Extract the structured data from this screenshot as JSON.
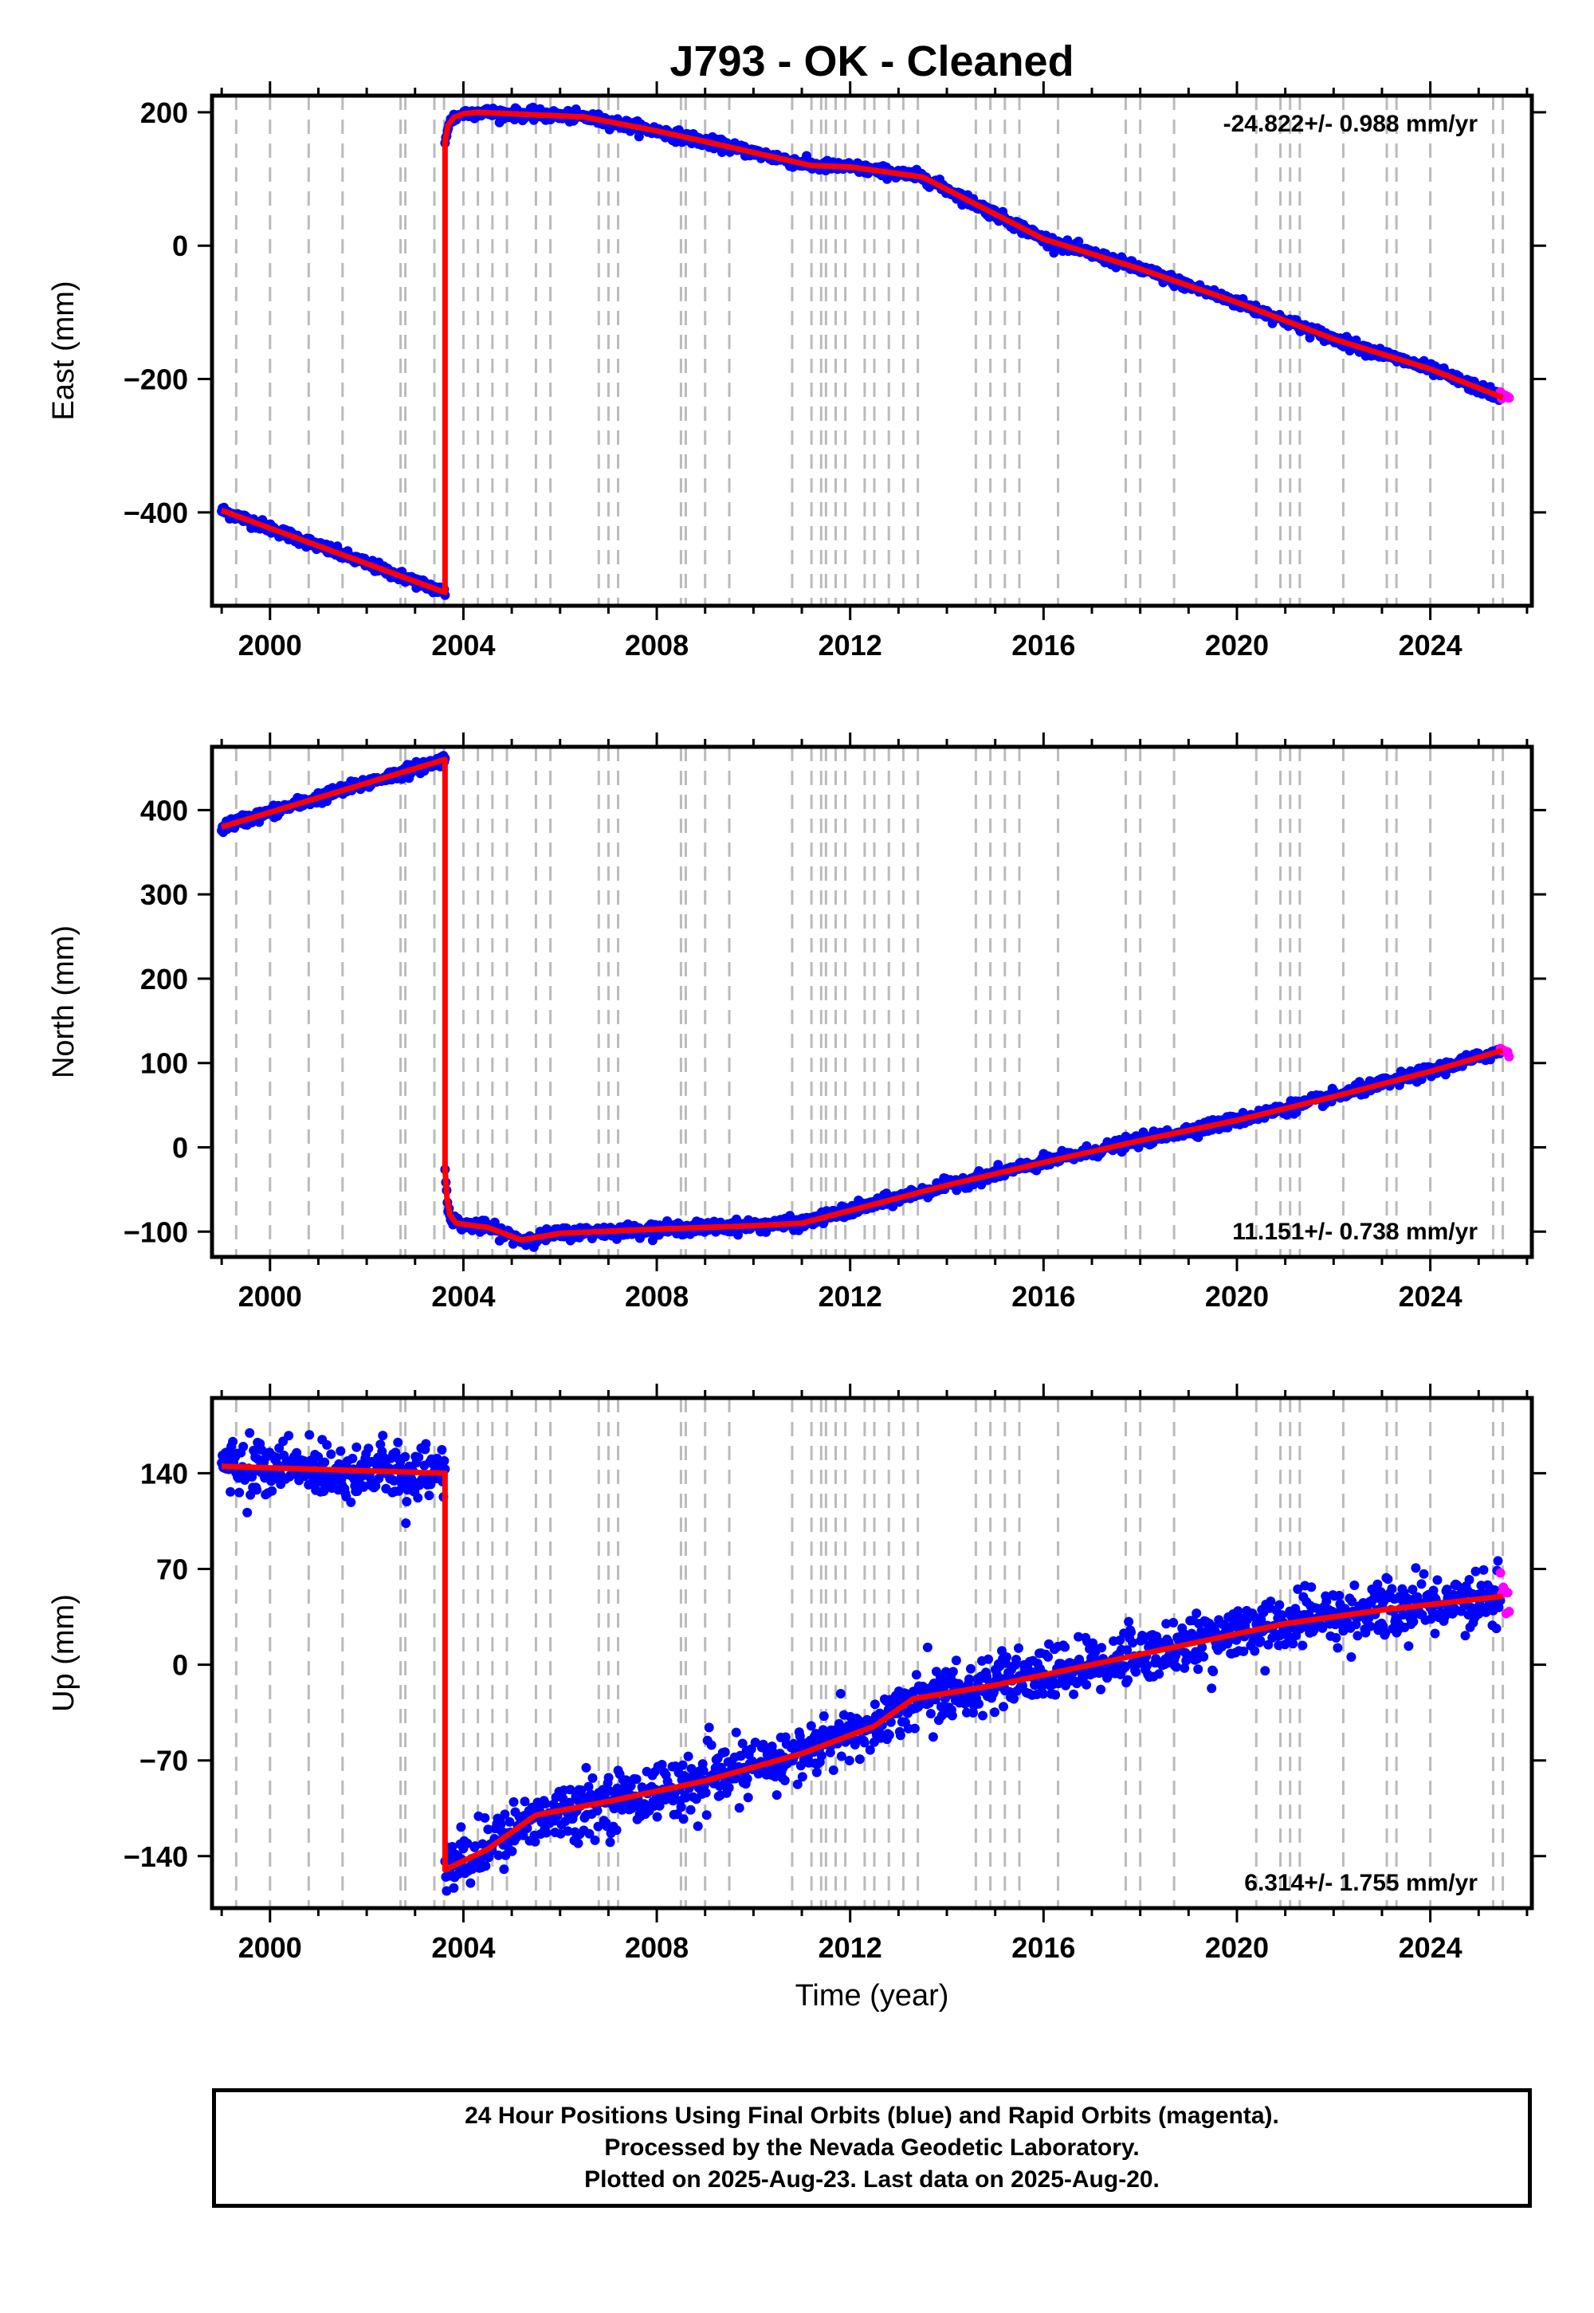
{
  "title": "J793  - OK - Cleaned",
  "colors": {
    "final": "#0000ff",
    "rapid": "#ff00ff",
    "model": "#ff0000",
    "event_line": "#bbbbbb"
  },
  "chart_data": [
    {
      "type": "scatter",
      "component": "East",
      "ylabel": "East (mm)",
      "xlabel": "",
      "xlim": [
        1998.8,
        2026.1
      ],
      "ylim": [
        -540,
        225
      ],
      "xticks": [
        2000,
        2004,
        2008,
        2012,
        2016,
        2020,
        2024
      ],
      "yticks": [
        -400,
        -200,
        0,
        200
      ],
      "ytick_labels": [
        "−400",
        "−200",
        "0",
        "200"
      ],
      "rate_text": "-24.822+/- 0.988 mm/yr",
      "rate_position": "top-right",
      "offset_year": 2003.62,
      "segments": [
        {
          "x": [
            1999.0,
            2003.62
          ],
          "y": [
            -397,
            -520
          ]
        },
        {
          "x": [
            2003.62,
            2003.68,
            2003.8,
            2004.0,
            2004.3
          ],
          "y": [
            155,
            180,
            192,
            198,
            200
          ]
        },
        {
          "x": [
            2004.3,
            2006.5,
            2008.0,
            2009.5,
            2011.2,
            2012.0,
            2013.5,
            2016.0,
            2018.0,
            2020.0,
            2022.0,
            2024.0,
            2025.5
          ],
          "y": [
            200,
            193,
            172,
            148,
            120,
            118,
            103,
            10,
            -35,
            -85,
            -140,
            -185,
            -228
          ]
        }
      ],
      "scatter_noise_mm": 4,
      "final_last_x": 2025.45,
      "rapid_range": [
        2025.45,
        2025.63
      ]
    },
    {
      "type": "scatter",
      "component": "North",
      "ylabel": "North (mm)",
      "xlabel": "",
      "xlim": [
        1998.8,
        2026.1
      ],
      "ylim": [
        -130,
        475
      ],
      "xticks": [
        2000,
        2004,
        2008,
        2012,
        2016,
        2020,
        2024
      ],
      "yticks": [
        -100,
        0,
        100,
        200,
        300,
        400
      ],
      "ytick_labels": [
        "−100",
        "0",
        "100",
        "200",
        "300",
        "400"
      ],
      "rate_text": "11.151+/- 0.738 mm/yr",
      "rate_position": "bottom-right",
      "offset_year": 2003.62,
      "segments": [
        {
          "x": [
            1999.0,
            2003.62
          ],
          "y": [
            380,
            460
          ]
        },
        {
          "x": [
            2003.62,
            2003.66,
            2003.72,
            2003.85,
            2004.1,
            2004.5
          ],
          "y": [
            -25,
            -60,
            -80,
            -90,
            -92,
            -95
          ]
        },
        {
          "x": [
            2004.5,
            2005.2,
            2006.0,
            2008.0,
            2010.0,
            2011.0,
            2012.0,
            2014.0,
            2016.0,
            2018.0,
            2020.0,
            2022.0,
            2024.0,
            2025.5
          ],
          "y": [
            -95,
            -110,
            -102,
            -97,
            -93,
            -90,
            -75,
            -45,
            -18,
            8,
            32,
            60,
            90,
            115
          ]
        }
      ],
      "scatter_noise_mm": 3.5,
      "final_last_x": 2025.45,
      "rapid_range": [
        2025.45,
        2025.63
      ]
    },
    {
      "type": "scatter",
      "component": "Up",
      "ylabel": "Up (mm)",
      "xlabel": "Time (year)",
      "xlim": [
        1998.8,
        2026.1
      ],
      "ylim": [
        -178,
        195
      ],
      "xticks": [
        2000,
        2004,
        2008,
        2012,
        2016,
        2020,
        2024
      ],
      "yticks": [
        -140,
        -70,
        0,
        70,
        140
      ],
      "ytick_labels": [
        "−140",
        "−70",
        "0",
        "70",
        "140"
      ],
      "rate_text": "6.314+/- 1.755 mm/yr",
      "rate_position": "bottom-right",
      "offset_year": 2003.62,
      "segments": [
        {
          "x": [
            1999.0,
            2003.62
          ],
          "y": [
            145,
            140
          ]
        },
        {
          "x": [
            2003.62,
            2004.5,
            2005.5,
            2007.0,
            2009.0,
            2011.0,
            2012.5,
            2013.3,
            2015.0,
            2017.0,
            2019.0,
            2021.0,
            2023.0,
            2025.5
          ],
          "y": [
            -150,
            -135,
            -110,
            -100,
            -85,
            -65,
            -45,
            -25,
            -15,
            0,
            15,
            30,
            40,
            50
          ]
        }
      ],
      "scatter_noise_mm": 10,
      "final_last_x": 2025.45,
      "rapid_range": [
        2025.45,
        2025.63
      ]
    }
  ],
  "event_lines": [
    1999.3,
    2000.0,
    2000.8,
    2001.5,
    2002.7,
    2002.8,
    2003.4,
    2003.6,
    2004.0,
    2004.3,
    2004.6,
    2004.9,
    2005.5,
    2005.8,
    2006.8,
    2007.0,
    2007.2,
    2008.5,
    2008.6,
    2009.0,
    2009.5,
    2010.8,
    2011.2,
    2011.4,
    2011.5,
    2011.7,
    2011.9,
    2012.3,
    2012.5,
    2012.8,
    2013.1,
    2013.4,
    2014.6,
    2014.9,
    2015.2,
    2015.5,
    2016.3,
    2017.7,
    2018.0,
    2018.7,
    2020.4,
    2020.9,
    2021.1,
    2021.3,
    2022.2,
    2023.1,
    2023.3,
    2024.0,
    2025.3,
    2025.5
  ],
  "footer": {
    "line1": "24 Hour Positions Using Final Orbits (blue) and Rapid Orbits (magenta).",
    "line2": "Processed by the Nevada Geodetic Laboratory.",
    "line3": "Plotted on 2025-Aug-23. Last data on 2025-Aug-20."
  }
}
